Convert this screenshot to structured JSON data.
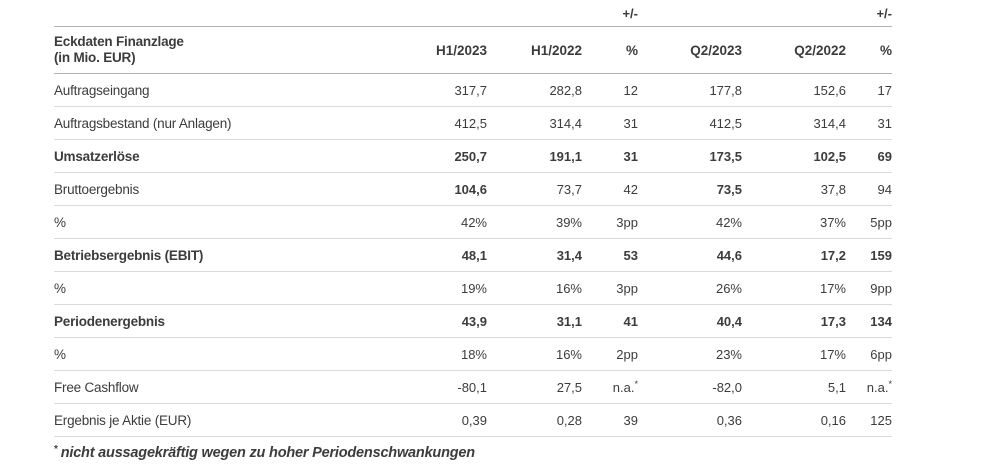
{
  "colors": {
    "text": "#3c3c3b",
    "header_line": "#b3b3b3",
    "row_line": "#d9d9d9",
    "background": "#ffffff"
  },
  "table": {
    "plus_minus": "+/-",
    "header": {
      "line1": "Eckdaten Finanzlage",
      "line2": "(in Mio. EUR)",
      "cols": [
        "H1/2023",
        "H1/2022",
        "%",
        "Q2/2023",
        "Q2/2022",
        "%"
      ]
    },
    "rows": [
      {
        "label": "Auftragseingang",
        "label_bold": false,
        "values": [
          "317,7",
          "282,8",
          "12",
          "177,8",
          "152,6",
          "17"
        ],
        "bold": [
          false,
          false,
          false,
          false,
          false,
          false
        ]
      },
      {
        "label": "Auftragsbestand (nur Anlagen)",
        "label_bold": false,
        "values": [
          "412,5",
          "314,4",
          "31",
          "412,5",
          "314,4",
          "31"
        ],
        "bold": [
          false,
          false,
          false,
          false,
          false,
          false
        ]
      },
      {
        "label": "Umsatzerlöse",
        "label_bold": true,
        "values": [
          "250,7",
          "191,1",
          "31",
          "173,5",
          "102,5",
          "69"
        ],
        "bold": [
          true,
          true,
          true,
          true,
          true,
          true
        ]
      },
      {
        "label": "Bruttoergebnis",
        "label_bold": false,
        "values": [
          "104,6",
          "73,7",
          "42",
          "73,5",
          "37,8",
          "94"
        ],
        "bold": [
          true,
          false,
          false,
          true,
          false,
          false
        ]
      },
      {
        "label": "%",
        "label_bold": false,
        "values": [
          "42%",
          "39%",
          "3pp",
          "42%",
          "37%",
          "5pp"
        ],
        "bold": [
          false,
          false,
          false,
          false,
          false,
          false
        ]
      },
      {
        "label": "Betriebsergebnis (EBIT)",
        "label_bold": true,
        "values": [
          "48,1",
          "31,4",
          "53",
          "44,6",
          "17,2",
          "159"
        ],
        "bold": [
          true,
          true,
          true,
          true,
          true,
          true
        ]
      },
      {
        "label": "%",
        "label_bold": false,
        "values": [
          "19%",
          "16%",
          "3pp",
          "26%",
          "17%",
          "9pp"
        ],
        "bold": [
          false,
          false,
          false,
          false,
          false,
          false
        ]
      },
      {
        "label": "Periodenergebnis",
        "label_bold": true,
        "values": [
          "43,9",
          "31,1",
          "41",
          "40,4",
          "17,3",
          "134"
        ],
        "bold": [
          true,
          true,
          true,
          true,
          true,
          true
        ]
      },
      {
        "label": "%",
        "label_bold": false,
        "values": [
          "18%",
          "16%",
          "2pp",
          "23%",
          "17%",
          "6pp"
        ],
        "bold": [
          false,
          false,
          false,
          false,
          false,
          false
        ]
      },
      {
        "label": "Free Cashflow",
        "label_bold": false,
        "values": [
          "-80,1",
          "27,5",
          "n.a.*",
          "-82,0",
          "5,1",
          "n.a.*"
        ],
        "bold": [
          false,
          false,
          false,
          false,
          false,
          false
        ]
      },
      {
        "label": "Ergebnis je Aktie (EUR)",
        "label_bold": false,
        "values": [
          "0,39",
          "0,28",
          "39",
          "0,36",
          "0,16",
          "125"
        ],
        "bold": [
          false,
          false,
          false,
          false,
          false,
          false
        ]
      }
    ]
  },
  "footnote": {
    "marker": "*",
    "text": "nicht aussagekräftig wegen zu hoher Periodenschwankungen"
  }
}
